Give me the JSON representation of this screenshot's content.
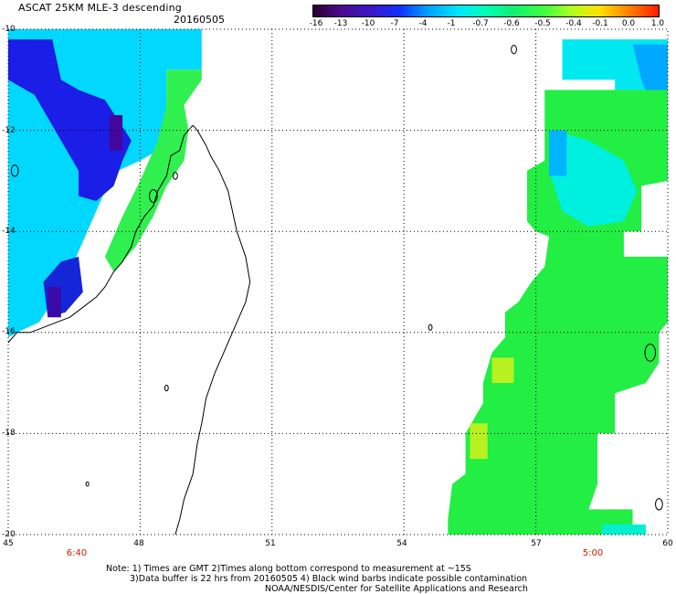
{
  "header": {
    "title": "ASCAT 25KM MLE-3 descending",
    "date": "20160505"
  },
  "colorbar": {
    "labels": [
      "-16",
      "-13",
      "-10",
      "-7",
      "-4",
      "-1",
      "-0.7",
      "-0.6",
      "-0.5",
      "-0.4",
      "-0.1",
      "0.0",
      "1.0"
    ],
    "colors": [
      "#2a0030",
      "#4b0b8c",
      "#3a18c8",
      "#1030ff",
      "#00a0ff",
      "#00e6ff",
      "#00ffb4",
      "#10f070",
      "#40ff40",
      "#b0ff20",
      "#ffe000",
      "#ff7a00",
      "#ff1a00"
    ]
  },
  "axes": {
    "lat_labels": [
      "-10",
      "-12",
      "-14",
      "-16",
      "-18",
      "-20"
    ],
    "lon_labels": [
      "45",
      "48",
      "51",
      "54",
      "57",
      "60"
    ]
  },
  "times": {
    "left_pass": "6:40",
    "right_pass": "5:00"
  },
  "notes": {
    "line1": "Note: 1) Times are GMT 2)Times along bottom correspond to measurement at ~15S",
    "line2": "3)Data buffer is 22 hrs from 20160505 4) Black wind barbs indicate possible contamination",
    "line3": "NOAA/NESDIS/Center for Satellite Applications and Research"
  },
  "map": {
    "lat_range": [
      -20,
      -10
    ],
    "lon_range": [
      45,
      60
    ],
    "regions": [
      {
        "name": "west-swath-upper",
        "color": "#00d8ff",
        "points": [
          [
            45,
            -10
          ],
          [
            49.4,
            -10
          ],
          [
            49.4,
            -10.8
          ],
          [
            48.6,
            -10.8
          ],
          [
            48.6,
            -12.3
          ],
          [
            48.0,
            -12.6
          ],
          [
            47.5,
            -12.8
          ],
          [
            47.2,
            -13.2
          ],
          [
            47.0,
            -13.6
          ],
          [
            46.8,
            -14.0
          ],
          [
            46.6,
            -14.4
          ],
          [
            46.4,
            -14.8
          ],
          [
            46.0,
            -15.4
          ],
          [
            45.7,
            -15.8
          ],
          [
            45.2,
            -16.0
          ],
          [
            45.0,
            -16.1
          ]
        ]
      },
      {
        "name": "west-deep-blue",
        "color": "#1a1ee6",
        "points": [
          [
            45.0,
            -10.2
          ],
          [
            46.0,
            -10.2
          ],
          [
            46.2,
            -11.0
          ],
          [
            46.6,
            -11.2
          ],
          [
            47.2,
            -11.4
          ],
          [
            47.8,
            -12.2
          ],
          [
            47.6,
            -12.6
          ],
          [
            47.4,
            -13.1
          ],
          [
            47.0,
            -13.4
          ],
          [
            46.6,
            -13.3
          ],
          [
            46.6,
            -12.8
          ],
          [
            46.2,
            -12.2
          ],
          [
            45.6,
            -11.3
          ],
          [
            45.0,
            -11.0
          ]
        ]
      },
      {
        "name": "west-purple",
        "color": "#44079e",
        "points": [
          [
            47.3,
            -11.7
          ],
          [
            47.6,
            -11.7
          ],
          [
            47.6,
            -12.4
          ],
          [
            47.3,
            -12.4
          ]
        ]
      },
      {
        "name": "west-sw-blue",
        "color": "#1426d8",
        "points": [
          [
            46.2,
            -14.6
          ],
          [
            46.6,
            -14.5
          ],
          [
            46.7,
            -15.2
          ],
          [
            46.3,
            -15.6
          ],
          [
            45.9,
            -15.7
          ],
          [
            45.8,
            -15.0
          ]
        ]
      },
      {
        "name": "west-sw-purple",
        "color": "#3a0aa6",
        "points": [
          [
            45.9,
            -15.1
          ],
          [
            46.2,
            -15.1
          ],
          [
            46.2,
            -15.7
          ],
          [
            45.9,
            -15.7
          ]
        ]
      },
      {
        "name": "west-green-east",
        "color": "#30f050",
        "points": [
          [
            48.6,
            -10.8
          ],
          [
            49.4,
            -10.8
          ],
          [
            49.4,
            -11.0
          ],
          [
            49.0,
            -11.5
          ],
          [
            49.1,
            -12.0
          ],
          [
            49.0,
            -12.6
          ],
          [
            48.6,
            -13.1
          ],
          [
            48.3,
            -13.7
          ],
          [
            47.9,
            -14.3
          ],
          [
            47.6,
            -14.6
          ],
          [
            47.4,
            -14.8
          ],
          [
            47.2,
            -14.5
          ],
          [
            47.6,
            -13.7
          ],
          [
            48.0,
            -13.0
          ],
          [
            48.4,
            -12.2
          ],
          [
            48.6,
            -11.5
          ]
        ]
      },
      {
        "name": "east-upper",
        "color": "#00e8f0",
        "points": [
          [
            57.6,
            -10.2
          ],
          [
            60,
            -10.2
          ],
          [
            60,
            -11.5
          ],
          [
            59.5,
            -11.5
          ],
          [
            59.5,
            -11.2
          ],
          [
            58.8,
            -11.2
          ],
          [
            58.8,
            -11.0
          ],
          [
            57.6,
            -11.0
          ]
        ]
      },
      {
        "name": "east-upper-blue",
        "color": "#00a8ff",
        "points": [
          [
            59.2,
            -10.3
          ],
          [
            60,
            -10.3
          ],
          [
            60,
            -11.7
          ],
          [
            59.7,
            -11.7
          ],
          [
            59.4,
            -11.0
          ]
        ]
      },
      {
        "name": "east-main",
        "color": "#22ee44",
        "points": [
          [
            57.2,
            -11.2
          ],
          [
            60,
            -11.2
          ],
          [
            60,
            -13.0
          ],
          [
            59.4,
            -13.1
          ],
          [
            59.4,
            -14.0
          ],
          [
            59.0,
            -14.0
          ],
          [
            59.0,
            -14.5
          ],
          [
            60,
            -14.5
          ],
          [
            60,
            -15.8
          ],
          [
            59.8,
            -16.0
          ],
          [
            59.8,
            -16.6
          ],
          [
            59.5,
            -17.0
          ],
          [
            58.8,
            -17.2
          ],
          [
            58.8,
            -18.0
          ],
          [
            58.4,
            -18.0
          ],
          [
            58.4,
            -19.0
          ],
          [
            58.2,
            -19.5
          ],
          [
            59.2,
            -19.5
          ],
          [
            59.2,
            -20.0
          ],
          [
            55.0,
            -20.0
          ],
          [
            55.0,
            -19.7
          ],
          [
            55.1,
            -19.0
          ],
          [
            55.4,
            -18.8
          ],
          [
            55.4,
            -18.0
          ],
          [
            55.8,
            -17.4
          ],
          [
            55.8,
            -17.0
          ],
          [
            56.0,
            -16.4
          ],
          [
            56.3,
            -16.1
          ],
          [
            56.3,
            -15.6
          ],
          [
            56.6,
            -15.4
          ],
          [
            56.9,
            -15.0
          ],
          [
            57.2,
            -14.7
          ],
          [
            57.3,
            -14.1
          ],
          [
            57.0,
            -14.0
          ],
          [
            56.8,
            -13.8
          ],
          [
            56.8,
            -12.8
          ],
          [
            57.2,
            -12.6
          ],
          [
            57.2,
            -11.8
          ]
        ]
      },
      {
        "name": "east-cyan-patch",
        "color": "#00f0e0",
        "points": [
          [
            57.4,
            -12.0
          ],
          [
            58.2,
            -12.2
          ],
          [
            59.0,
            -12.6
          ],
          [
            59.3,
            -13.2
          ],
          [
            59.0,
            -13.8
          ],
          [
            58.2,
            -13.9
          ],
          [
            57.6,
            -13.6
          ],
          [
            57.3,
            -12.8
          ]
        ]
      },
      {
        "name": "east-blue-band",
        "color": "#00b4ff",
        "points": [
          [
            57.3,
            -12.0
          ],
          [
            57.7,
            -12.0
          ],
          [
            57.7,
            -12.9
          ],
          [
            57.3,
            -12.9
          ]
        ]
      },
      {
        "name": "east-yellow-1",
        "color": "#b8f020",
        "points": [
          [
            56.0,
            -16.5
          ],
          [
            56.5,
            -16.5
          ],
          [
            56.5,
            -17.0
          ],
          [
            56.0,
            -17.0
          ]
        ]
      },
      {
        "name": "east-yellow-2",
        "color": "#b8f020",
        "points": [
          [
            55.5,
            -17.8
          ],
          [
            55.9,
            -17.8
          ],
          [
            55.9,
            -18.5
          ],
          [
            55.5,
            -18.5
          ]
        ]
      },
      {
        "name": "east-bottom-cyan",
        "color": "#00f0d0",
        "points": [
          [
            58.5,
            -19.8
          ],
          [
            59.5,
            -19.8
          ],
          [
            59.5,
            -20.0
          ],
          [
            58.5,
            -20.0
          ]
        ]
      }
    ],
    "coast_madagascar": [
      [
        49.2,
        -11.9
      ],
      [
        49.3,
        -12.0
      ],
      [
        49.5,
        -12.3
      ],
      [
        49.6,
        -12.5
      ],
      [
        49.8,
        -12.8
      ],
      [
        50.0,
        -13.2
      ],
      [
        50.1,
        -13.6
      ],
      [
        50.2,
        -14.0
      ],
      [
        50.4,
        -14.5
      ],
      [
        50.5,
        -15.0
      ],
      [
        50.4,
        -15.4
      ],
      [
        50.2,
        -15.8
      ],
      [
        49.9,
        -16.4
      ],
      [
        49.7,
        -16.8
      ],
      [
        49.5,
        -17.3
      ],
      [
        49.4,
        -17.8
      ],
      [
        49.3,
        -18.2
      ],
      [
        49.2,
        -18.8
      ],
      [
        49.0,
        -19.3
      ],
      [
        48.9,
        -19.7
      ],
      [
        48.8,
        -20.0
      ]
    ],
    "coast_mada_west": [
      [
        49.2,
        -11.9
      ],
      [
        49.0,
        -12.1
      ],
      [
        48.9,
        -12.4
      ],
      [
        48.7,
        -12.5
      ],
      [
        48.6,
        -12.9
      ],
      [
        48.4,
        -13.2
      ],
      [
        48.3,
        -13.5
      ],
      [
        48.1,
        -13.7
      ],
      [
        47.9,
        -14.0
      ],
      [
        47.8,
        -14.3
      ],
      [
        47.6,
        -14.6
      ],
      [
        47.4,
        -14.8
      ],
      [
        47.2,
        -15.1
      ],
      [
        47.0,
        -15.3
      ],
      [
        46.7,
        -15.5
      ],
      [
        46.4,
        -15.7
      ],
      [
        46.1,
        -15.8
      ],
      [
        45.8,
        -15.9
      ],
      [
        45.5,
        -16.0
      ],
      [
        45.2,
        -16.0
      ],
      [
        45.0,
        -16.2
      ]
    ],
    "islands": [
      {
        "cx": 45.15,
        "cy": -12.8,
        "r": 0.08
      },
      {
        "cx": 48.3,
        "cy": -13.3,
        "r": 0.09
      },
      {
        "cx": 48.8,
        "cy": -12.9,
        "r": 0.05
      },
      {
        "cx": 54.6,
        "cy": -15.9,
        "r": 0.04
      },
      {
        "cx": 56.5,
        "cy": -10.4,
        "r": 0.06
      },
      {
        "cx": 59.6,
        "cy": -16.4,
        "r": 0.12
      },
      {
        "cx": 59.8,
        "cy": -19.4,
        "r": 0.08
      },
      {
        "cx": 46.8,
        "cy": -19.0,
        "r": 0.03
      },
      {
        "cx": 48.6,
        "cy": -17.1,
        "r": 0.04
      }
    ]
  }
}
